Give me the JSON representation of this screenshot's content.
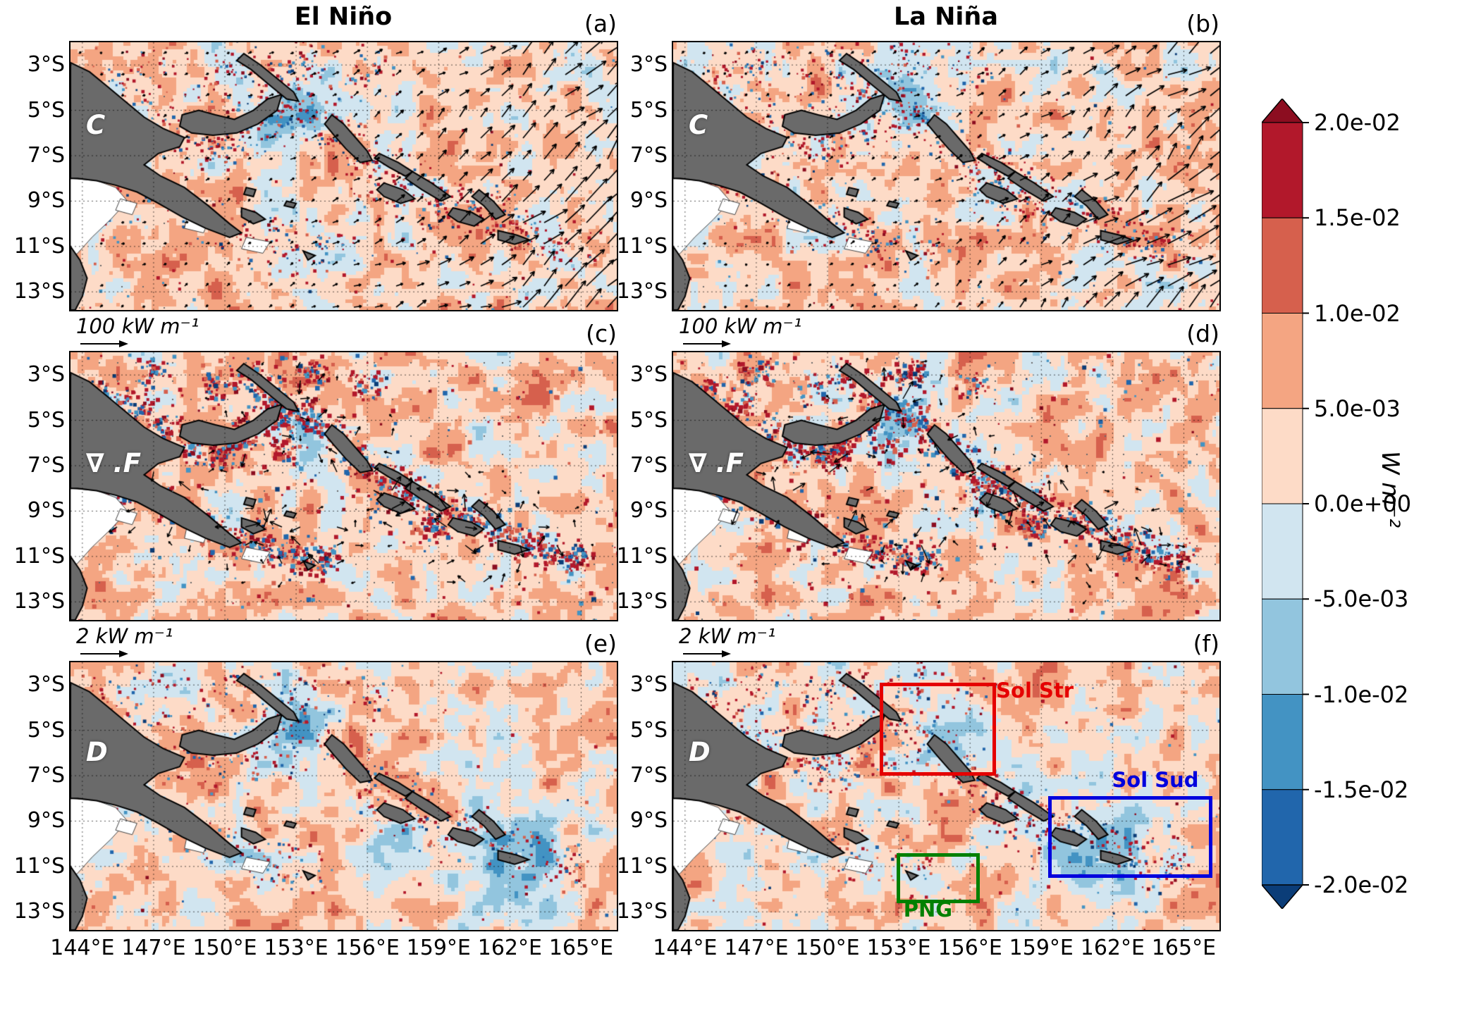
{
  "chart_data": {
    "type": "heatmap",
    "columns": [
      "El Niño",
      "La Niña"
    ],
    "panels": [
      {
        "label": "(a)",
        "column": "El Niño",
        "row_label": "C",
        "quiver": "ne",
        "quiver_key": "100 kW m⁻¹",
        "seed": 11
      },
      {
        "label": "(b)",
        "column": "La Niña",
        "row_label": "C",
        "quiver": "ne",
        "quiver_key": "100 kW m⁻¹",
        "seed": 22
      },
      {
        "label": "(c)",
        "column": "El Niño",
        "row_label": "∇ .F",
        "quiver": "radial",
        "quiver_key": "2 kW m⁻¹",
        "seed": 33
      },
      {
        "label": "(d)",
        "column": "La Niña",
        "row_label": "∇ .F",
        "quiver": "radial",
        "quiver_key": "2 kW m⁻¹",
        "seed": 44
      },
      {
        "label": "(e)",
        "column": "El Niño",
        "row_label": "D",
        "quiver": "none",
        "quiver_key": null,
        "seed": 55
      },
      {
        "label": "(f)",
        "column": "La Niña",
        "row_label": "D",
        "quiver": "none",
        "quiver_key": null,
        "seed": 66
      }
    ],
    "x_ticks": [
      "144°E",
      "147°E",
      "150°E",
      "153°E",
      "156°E",
      "159°E",
      "162°E",
      "165°E"
    ],
    "x_tick_lons": [
      144,
      147,
      150,
      153,
      156,
      159,
      162,
      165
    ],
    "y_ticks": [
      "3°S",
      "5°S",
      "7°S",
      "9°S",
      "11°S",
      "13°S"
    ],
    "y_tick_lats": [
      3,
      5,
      7,
      9,
      11,
      13
    ],
    "lon_range": [
      143.5,
      166.5
    ],
    "lat_range": [
      2.0,
      13.8
    ],
    "quiver_keys": [
      {
        "row": 0,
        "label": "100 kW m⁻¹"
      },
      {
        "row": 1,
        "label": "2 kW m⁻¹"
      }
    ],
    "colorbar": {
      "unit": "W m⁻²",
      "tick_labels": [
        "2.0e-02",
        "1.5e-02",
        "1.0e-02",
        "5.0e-03",
        "0.0e+00",
        "-5.0e-03",
        "-1.0e-02",
        "-1.5e-02",
        "-2.0e-02"
      ],
      "segment_colors": [
        "#b2182b",
        "#d6604d",
        "#f4a582",
        "#fddbc7",
        "#d1e5f0",
        "#92c5de",
        "#4393c3",
        "#2166ac"
      ],
      "extend_over": "#8c0d20",
      "extend_under": "#0b3d78"
    },
    "regions": [
      {
        "name": "Sol Str",
        "color": "#e50000",
        "lon": [
          152.2,
          156.8
        ],
        "lat": [
          2.9,
          6.7
        ],
        "label_pos": "right-of-top"
      },
      {
        "name": "Sol Sud",
        "color": "#0000dd",
        "lon": [
          159.3,
          165.9
        ],
        "lat": [
          7.9,
          11.2
        ],
        "label_pos": "above"
      },
      {
        "name": "PNG",
        "color": "#008000",
        "lon": [
          152.9,
          156.1
        ],
        "lat": [
          10.4,
          12.3
        ],
        "label_pos": "below"
      }
    ],
    "palette": {
      "land": "#6a6a6a",
      "coast": "#000000",
      "shallow": "#ffffff"
    },
    "land_polygons": {
      "land": [
        [
          [
            143.5,
            2.9
          ],
          [
            144.3,
            3.3
          ],
          [
            145.0,
            3.9
          ],
          [
            145.8,
            4.6
          ],
          [
            146.6,
            5.3
          ],
          [
            147.4,
            5.8
          ],
          [
            148.3,
            6.2
          ],
          [
            148.1,
            6.6
          ],
          [
            147.2,
            6.9
          ],
          [
            146.6,
            7.4
          ],
          [
            147.3,
            7.9
          ],
          [
            148.3,
            8.4
          ],
          [
            149.3,
            9.2
          ],
          [
            150.2,
            10.0
          ],
          [
            150.7,
            10.4
          ],
          [
            150.2,
            10.6
          ],
          [
            149.2,
            10.2
          ],
          [
            148.2,
            9.7
          ],
          [
            147.2,
            9.1
          ],
          [
            146.3,
            8.6
          ],
          [
            145.4,
            8.3
          ],
          [
            144.6,
            8.1
          ],
          [
            143.8,
            8.0
          ],
          [
            143.5,
            8.0
          ]
        ],
        [
          [
            148.2,
            5.2
          ],
          [
            148.9,
            5.0
          ],
          [
            149.6,
            5.2
          ],
          [
            150.4,
            5.4
          ],
          [
            151.2,
            5.0
          ],
          [
            151.8,
            4.5
          ],
          [
            152.4,
            4.3
          ],
          [
            152.2,
            5.0
          ],
          [
            151.4,
            5.6
          ],
          [
            150.5,
            6.0
          ],
          [
            149.5,
            6.1
          ],
          [
            148.6,
            6.0
          ],
          [
            148.1,
            5.7
          ]
        ],
        [
          [
            150.8,
            2.5
          ],
          [
            151.5,
            3.0
          ],
          [
            152.2,
            3.6
          ],
          [
            152.9,
            4.2
          ],
          [
            153.1,
            4.6
          ],
          [
            152.6,
            4.5
          ],
          [
            151.9,
            3.9
          ],
          [
            151.1,
            3.2
          ],
          [
            150.5,
            2.8
          ]
        ],
        [
          [
            154.5,
            5.2
          ],
          [
            155.0,
            5.6
          ],
          [
            155.5,
            6.2
          ],
          [
            156.0,
            6.8
          ],
          [
            156.2,
            7.2
          ],
          [
            155.7,
            7.3
          ],
          [
            155.1,
            6.7
          ],
          [
            154.6,
            6.1
          ],
          [
            154.2,
            5.6
          ]
        ],
        [
          [
            156.5,
            6.9
          ],
          [
            157.3,
            7.3
          ],
          [
            157.9,
            7.7
          ],
          [
            157.6,
            7.9
          ],
          [
            156.9,
            7.5
          ],
          [
            156.3,
            7.1
          ]
        ],
        [
          [
            157.9,
            7.7
          ],
          [
            158.7,
            8.2
          ],
          [
            159.5,
            8.8
          ],
          [
            159.1,
            9.0
          ],
          [
            158.3,
            8.5
          ],
          [
            157.6,
            8.0
          ]
        ],
        [
          [
            156.7,
            8.2
          ],
          [
            157.5,
            8.5
          ],
          [
            158.0,
            8.9
          ],
          [
            157.4,
            9.1
          ],
          [
            156.7,
            8.8
          ],
          [
            156.4,
            8.5
          ]
        ],
        [
          [
            159.6,
            9.3
          ],
          [
            160.4,
            9.5
          ],
          [
            160.9,
            9.8
          ],
          [
            160.5,
            10.1
          ],
          [
            159.8,
            9.9
          ],
          [
            159.4,
            9.6
          ]
        ],
        [
          [
            160.7,
            8.5
          ],
          [
            161.3,
            9.0
          ],
          [
            161.8,
            9.6
          ],
          [
            161.4,
            9.8
          ],
          [
            160.9,
            9.2
          ],
          [
            160.4,
            8.8
          ]
        ],
        [
          [
            161.5,
            10.3
          ],
          [
            162.3,
            10.5
          ],
          [
            162.8,
            10.7
          ],
          [
            162.2,
            10.9
          ],
          [
            161.5,
            10.7
          ]
        ],
        [
          [
            150.7,
            9.3
          ],
          [
            151.3,
            9.5
          ],
          [
            151.7,
            9.8
          ],
          [
            151.2,
            10.0
          ],
          [
            150.7,
            9.7
          ]
        ],
        [
          [
            150.9,
            8.4
          ],
          [
            151.3,
            8.5
          ],
          [
            151.2,
            8.8
          ],
          [
            150.8,
            8.7
          ]
        ],
        [
          [
            152.6,
            9.0
          ],
          [
            153.0,
            9.1
          ],
          [
            152.9,
            9.3
          ],
          [
            152.5,
            9.2
          ]
        ],
        [
          [
            153.3,
            11.2
          ],
          [
            153.8,
            11.4
          ],
          [
            153.5,
            11.6
          ]
        ],
        [
          [
            143.5,
            11.0
          ],
          [
            143.9,
            11.6
          ],
          [
            144.2,
            12.4
          ],
          [
            144.0,
            13.2
          ],
          [
            143.7,
            13.8
          ],
          [
            143.5,
            13.8
          ]
        ]
      ],
      "white": [
        [
          [
            143.5,
            8.0
          ],
          [
            144.6,
            8.1
          ],
          [
            145.4,
            8.4
          ],
          [
            145.9,
            9.0
          ],
          [
            145.2,
            9.8
          ],
          [
            144.4,
            10.6
          ],
          [
            143.8,
            11.3
          ],
          [
            143.5,
            11.5
          ]
        ],
        [
          [
            148.4,
            9.7
          ],
          [
            149.3,
            9.9
          ],
          [
            149.1,
            10.4
          ],
          [
            148.3,
            10.2
          ]
        ],
        [
          [
            145.6,
            8.9
          ],
          [
            146.3,
            9.1
          ],
          [
            146.1,
            9.6
          ],
          [
            145.4,
            9.4
          ]
        ],
        [
          [
            150.9,
            10.6
          ],
          [
            151.9,
            10.8
          ],
          [
            151.6,
            11.3
          ],
          [
            150.7,
            11.1
          ]
        ]
      ]
    }
  }
}
